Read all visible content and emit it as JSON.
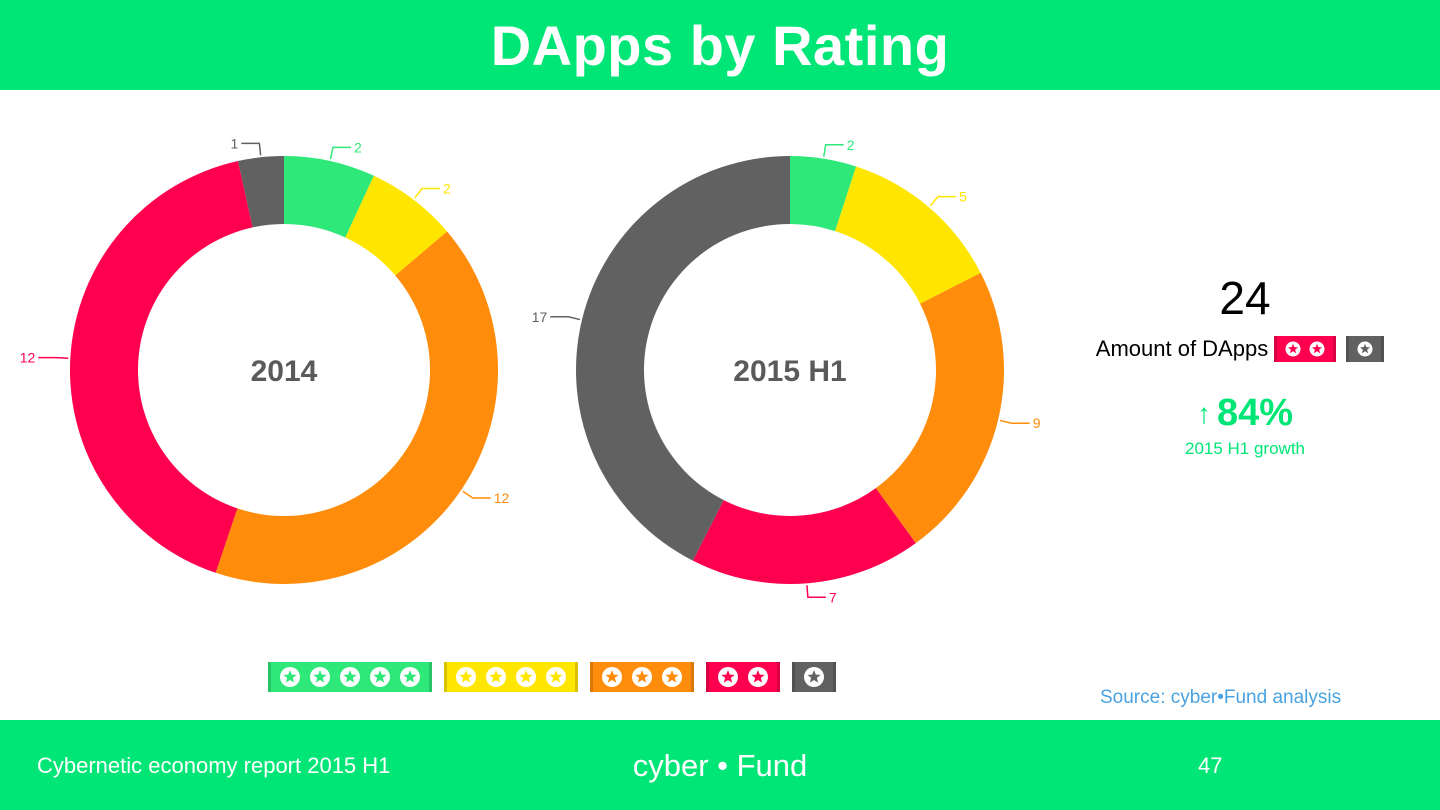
{
  "header": {
    "title": "DApps by Rating"
  },
  "footer": {
    "report": "Cybernetic economy report 2015 H1",
    "brand": "cyber • Fund",
    "page": "47"
  },
  "colors": {
    "accent": "#00e676",
    "rating5": "#2ee87a",
    "rating4": "#ffe600",
    "rating3": "#ff8c0a",
    "rating2": "#ff004e",
    "rating1": "#616161",
    "source": "#4aa3e0"
  },
  "chart_data": [
    {
      "type": "pie",
      "style": "donut",
      "title": "2014",
      "categories": [
        "5 stars",
        "4 stars",
        "3 stars",
        "2 stars",
        "1 star"
      ],
      "values": [
        2,
        2,
        12,
        12,
        1
      ],
      "colors": [
        "#2ee87a",
        "#ffe600",
        "#ff8c0a",
        "#ff004e",
        "#616161"
      ]
    },
    {
      "type": "pie",
      "style": "donut",
      "title": "2015 H1",
      "categories": [
        "5 stars",
        "4 stars",
        "3 stars",
        "2 stars",
        "1 star"
      ],
      "values": [
        2,
        5,
        9,
        7,
        17
      ],
      "colors": [
        "#2ee87a",
        "#ffe600",
        "#ff8c0a",
        "#ff004e",
        "#616161"
      ]
    }
  ],
  "side": {
    "big_number": "24",
    "amount_label": "Amount of DApps",
    "growth_value": "84%",
    "growth_label": "2015 H1 growth"
  },
  "source": "Source: cyber•Fund analysis",
  "legend": [
    {
      "stars": 5,
      "color": "#2ee87a",
      "icon": "star-icon"
    },
    {
      "stars": 4,
      "color": "#ffe600",
      "icon": "star-icon"
    },
    {
      "stars": 3,
      "color": "#ff8c0a",
      "icon": "star-icon"
    },
    {
      "stars": 2,
      "color": "#ff004e",
      "icon": "star-icon"
    },
    {
      "stars": 1,
      "color": "#616161",
      "icon": "star-icon"
    }
  ]
}
